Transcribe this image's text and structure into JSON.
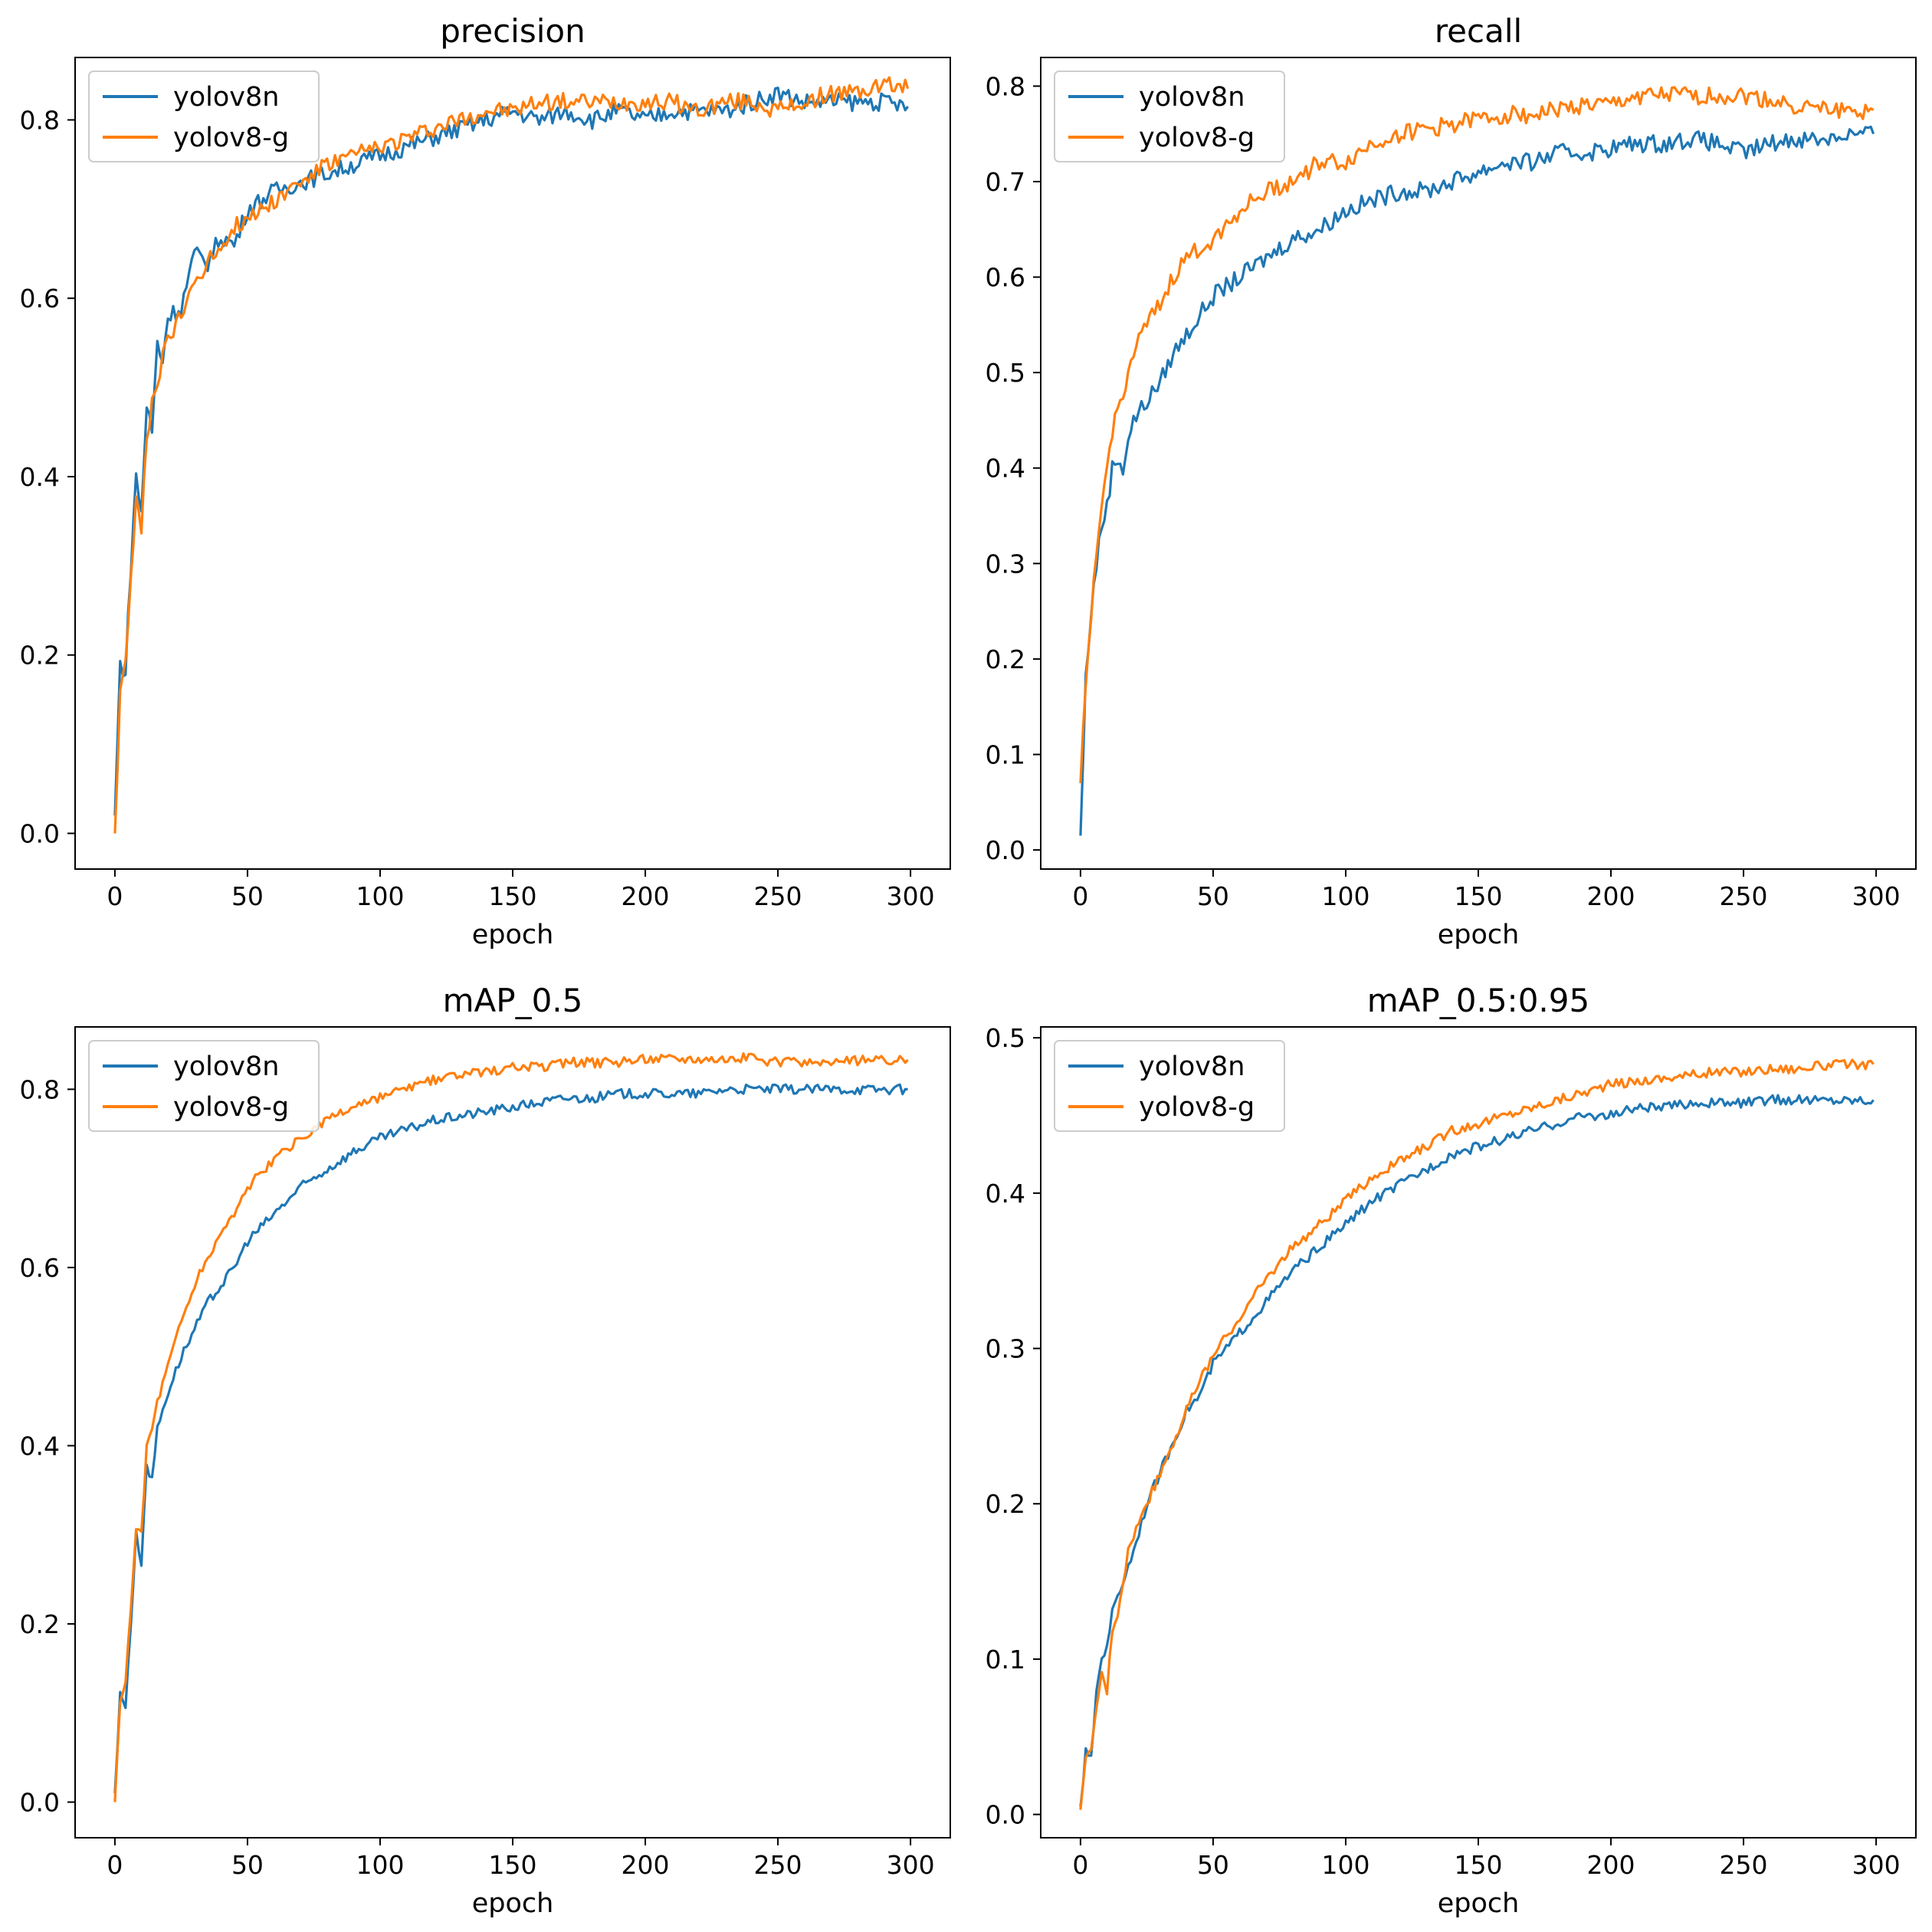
{
  "colors": {
    "yolov8n": "#1f77b4",
    "yolov8-g": "#ff7f0e"
  },
  "chart_data": [
    {
      "type": "line",
      "title": "precision",
      "xlabel": "epoch",
      "ylabel": "",
      "xlim": [
        -15,
        315
      ],
      "ylim": [
        -0.04,
        0.87
      ],
      "xticks": [
        0,
        50,
        100,
        150,
        200,
        250,
        300
      ],
      "yticks": [
        "0.0",
        "0.2",
        "0.4",
        "0.6",
        "0.8"
      ],
      "legend": "top-left",
      "x": [
        0,
        2,
        4,
        6,
        8,
        10,
        12,
        14,
        16,
        18,
        20,
        25,
        30,
        35,
        40,
        45,
        50,
        60,
        70,
        80,
        90,
        100,
        110,
        120,
        130,
        140,
        150,
        160,
        170,
        180,
        190,
        200,
        210,
        220,
        230,
        240,
        250,
        260,
        270,
        280,
        290,
        299
      ],
      "series": [
        {
          "name": "yolov8n",
          "values": [
            0.02,
            0.19,
            0.18,
            0.3,
            0.4,
            0.36,
            0.48,
            0.45,
            0.55,
            0.53,
            0.58,
            0.59,
            0.65,
            0.64,
            0.67,
            0.66,
            0.7,
            0.72,
            0.73,
            0.74,
            0.75,
            0.76,
            0.77,
            0.78,
            0.79,
            0.8,
            0.81,
            0.8,
            0.81,
            0.8,
            0.81,
            0.8,
            0.81,
            0.81,
            0.81,
            0.82,
            0.83,
            0.82,
            0.82,
            0.82,
            0.82,
            0.815
          ]
        },
        {
          "name": "yolov8-g",
          "values": [
            0.0,
            0.16,
            0.2,
            0.28,
            0.37,
            0.34,
            0.44,
            0.48,
            0.5,
            0.54,
            0.55,
            0.58,
            0.62,
            0.64,
            0.66,
            0.68,
            0.69,
            0.71,
            0.73,
            0.75,
            0.76,
            0.77,
            0.78,
            0.79,
            0.8,
            0.81,
            0.81,
            0.82,
            0.82,
            0.82,
            0.82,
            0.82,
            0.82,
            0.81,
            0.82,
            0.82,
            0.81,
            0.82,
            0.83,
            0.83,
            0.84,
            0.835
          ]
        }
      ]
    },
    {
      "type": "line",
      "title": "recall",
      "xlabel": "epoch",
      "ylabel": "",
      "xlim": [
        -15,
        315
      ],
      "ylim": [
        -0.02,
        0.83
      ],
      "xticks": [
        0,
        50,
        100,
        150,
        200,
        250,
        300
      ],
      "yticks": [
        "0.0",
        "0.1",
        "0.2",
        "0.3",
        "0.4",
        "0.5",
        "0.6",
        "0.7",
        "0.8"
      ],
      "legend": "top-left",
      "x": [
        0,
        2,
        4,
        6,
        8,
        10,
        12,
        14,
        16,
        18,
        20,
        25,
        30,
        35,
        40,
        45,
        50,
        60,
        70,
        80,
        90,
        100,
        110,
        120,
        130,
        140,
        150,
        160,
        170,
        180,
        190,
        200,
        210,
        220,
        230,
        240,
        250,
        260,
        270,
        280,
        290,
        299
      ],
      "series": [
        {
          "name": "yolov8n",
          "values": [
            0.015,
            0.18,
            0.25,
            0.3,
            0.34,
            0.36,
            0.4,
            0.41,
            0.4,
            0.43,
            0.45,
            0.47,
            0.49,
            0.52,
            0.54,
            0.56,
            0.58,
            0.6,
            0.62,
            0.64,
            0.65,
            0.67,
            0.68,
            0.69,
            0.69,
            0.7,
            0.71,
            0.72,
            0.72,
            0.73,
            0.73,
            0.735,
            0.74,
            0.74,
            0.745,
            0.74,
            0.73,
            0.74,
            0.745,
            0.745,
            0.75,
            0.75
          ]
        },
        {
          "name": "yolov8-g",
          "values": [
            0.07,
            0.17,
            0.25,
            0.3,
            0.36,
            0.4,
            0.44,
            0.46,
            0.48,
            0.5,
            0.52,
            0.55,
            0.57,
            0.6,
            0.62,
            0.63,
            0.64,
            0.67,
            0.69,
            0.7,
            0.72,
            0.72,
            0.74,
            0.75,
            0.755,
            0.76,
            0.765,
            0.77,
            0.77,
            0.775,
            0.78,
            0.78,
            0.79,
            0.79,
            0.79,
            0.79,
            0.79,
            0.785,
            0.78,
            0.775,
            0.775,
            0.775
          ]
        }
      ]
    },
    {
      "type": "line",
      "title": "mAP_0.5",
      "xlabel": "epoch",
      "ylabel": "",
      "xlim": [
        -15,
        315
      ],
      "ylim": [
        -0.04,
        0.87
      ],
      "xticks": [
        0,
        50,
        100,
        150,
        200,
        250,
        300
      ],
      "yticks": [
        "0.0",
        "0.2",
        "0.4",
        "0.6",
        "0.8"
      ],
      "legend": "top-left",
      "x": [
        0,
        2,
        4,
        6,
        8,
        10,
        12,
        14,
        16,
        18,
        20,
        25,
        30,
        35,
        40,
        45,
        50,
        60,
        70,
        80,
        90,
        100,
        110,
        120,
        130,
        140,
        150,
        160,
        170,
        180,
        190,
        200,
        210,
        220,
        230,
        240,
        250,
        260,
        270,
        280,
        290,
        299
      ],
      "series": [
        {
          "name": "yolov8n",
          "values": [
            0.01,
            0.12,
            0.11,
            0.2,
            0.3,
            0.27,
            0.38,
            0.36,
            0.42,
            0.44,
            0.46,
            0.5,
            0.53,
            0.56,
            0.58,
            0.6,
            0.63,
            0.66,
            0.69,
            0.71,
            0.73,
            0.745,
            0.755,
            0.765,
            0.77,
            0.775,
            0.78,
            0.785,
            0.79,
            0.79,
            0.795,
            0.795,
            0.795,
            0.795,
            0.8,
            0.8,
            0.8,
            0.8,
            0.8,
            0.8,
            0.8,
            0.8
          ]
        },
        {
          "name": "yolov8-g",
          "values": [
            0.0,
            0.11,
            0.13,
            0.22,
            0.31,
            0.3,
            0.4,
            0.42,
            0.45,
            0.47,
            0.49,
            0.54,
            0.58,
            0.61,
            0.64,
            0.66,
            0.69,
            0.72,
            0.745,
            0.765,
            0.78,
            0.79,
            0.8,
            0.81,
            0.815,
            0.82,
            0.825,
            0.825,
            0.83,
            0.83,
            0.83,
            0.835,
            0.835,
            0.835,
            0.835,
            0.835,
            0.83,
            0.83,
            0.83,
            0.832,
            0.833,
            0.833
          ]
        }
      ]
    },
    {
      "type": "line",
      "title": "mAP_0.5:0.95",
      "xlabel": "epoch",
      "ylabel": "",
      "xlim": [
        -15,
        315
      ],
      "ylim": [
        -0.015,
        0.507
      ],
      "xticks": [
        0,
        50,
        100,
        150,
        200,
        250,
        300
      ],
      "yticks": [
        "0.0",
        "0.1",
        "0.2",
        "0.3",
        "0.4",
        "0.5"
      ],
      "legend": "top-left",
      "x": [
        0,
        2,
        4,
        6,
        8,
        10,
        12,
        14,
        16,
        18,
        20,
        25,
        30,
        35,
        40,
        45,
        50,
        60,
        70,
        80,
        90,
        100,
        110,
        120,
        130,
        140,
        150,
        160,
        170,
        180,
        190,
        200,
        210,
        220,
        230,
        240,
        250,
        260,
        270,
        280,
        290,
        299
      ],
      "series": [
        {
          "name": "yolov8n",
          "values": [
            0.005,
            0.04,
            0.035,
            0.08,
            0.1,
            0.11,
            0.13,
            0.14,
            0.15,
            0.16,
            0.17,
            0.2,
            0.22,
            0.24,
            0.26,
            0.27,
            0.29,
            0.31,
            0.33,
            0.35,
            0.365,
            0.38,
            0.395,
            0.405,
            0.415,
            0.425,
            0.43,
            0.435,
            0.44,
            0.445,
            0.45,
            0.45,
            0.455,
            0.455,
            0.458,
            0.458,
            0.458,
            0.46,
            0.46,
            0.46,
            0.46,
            0.46
          ]
        },
        {
          "name": "yolov8-g",
          "values": [
            0.003,
            0.035,
            0.04,
            0.07,
            0.09,
            0.08,
            0.12,
            0.13,
            0.15,
            0.17,
            0.18,
            0.2,
            0.22,
            0.24,
            0.26,
            0.28,
            0.295,
            0.32,
            0.345,
            0.365,
            0.38,
            0.395,
            0.41,
            0.42,
            0.43,
            0.44,
            0.445,
            0.45,
            0.455,
            0.46,
            0.465,
            0.47,
            0.472,
            0.474,
            0.476,
            0.478,
            0.478,
            0.48,
            0.48,
            0.482,
            0.483,
            0.483
          ]
        }
      ]
    }
  ]
}
